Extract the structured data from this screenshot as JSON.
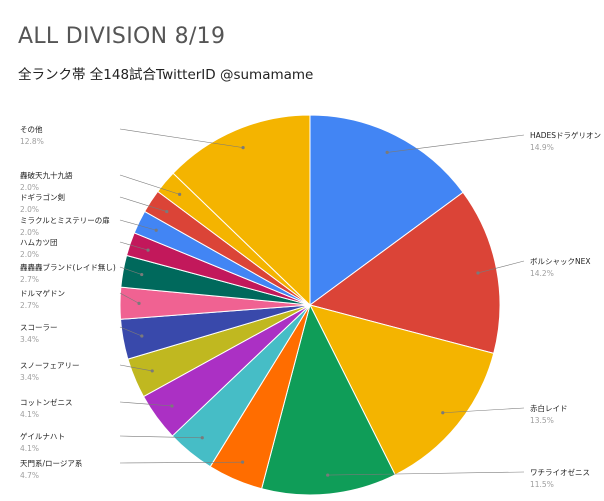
{
  "chart_data": {
    "type": "pie",
    "title": "ALL DIVISION 8/19",
    "subtitle": "全ランク帯 全148試合TwitterID @sumamame",
    "slices": [
      {
        "label": "HADESドラゲリオン",
        "value": 14.9,
        "value_label": "14.9%",
        "color": "#4285f4"
      },
      {
        "label": "ボルシャックNEX",
        "value": 14.2,
        "value_label": "14.2%",
        "color": "#db4437"
      },
      {
        "label": "赤白レイド",
        "value": 13.5,
        "value_label": "13.5%",
        "color": "#f4b400"
      },
      {
        "label": "ワチライオゼニス",
        "value": 11.5,
        "value_label": "11.5%",
        "color": "#0f9d58"
      },
      {
        "label": "天門系/ロージア系",
        "value": 4.7,
        "value_label": "4.7%",
        "color": "#ff6d00"
      },
      {
        "label": "ゲイルナハト",
        "value": 4.1,
        "value_label": "4.1%",
        "color": "#46bdc6"
      },
      {
        "label": "コットンゼニス",
        "value": 4.1,
        "value_label": "4.1%",
        "color": "#ab30c4"
      },
      {
        "label": "スノーフェアリー",
        "value": 3.4,
        "value_label": "3.4%",
        "color": "#c0b820"
      },
      {
        "label": "スコーラー",
        "value": 3.4,
        "value_label": "3.4%",
        "color": "#3949ab"
      },
      {
        "label": "ドルマゲドン",
        "value": 2.7,
        "value_label": "2.7%",
        "color": "#f06292"
      },
      {
        "label": "轟轟轟ブランド(レイド無し)",
        "value": 2.7,
        "value_label": "2.7%",
        "color": "#00695c"
      },
      {
        "label": "ハムカツ団",
        "value": 2.0,
        "value_label": "2.0%",
        "color": "#c2185b"
      },
      {
        "label": "ミラクルとミステリーの扉",
        "value": 2.0,
        "value_label": "2.0%",
        "color": "#4285f4"
      },
      {
        "label": "ドギラゴン剣",
        "value": 2.0,
        "value_label": "2.0%",
        "color": "#db4437"
      },
      {
        "label": "轟破天九十九語",
        "value": 2.0,
        "value_label": "2.0%",
        "color": "#f4b400"
      },
      {
        "label": "その他",
        "value": 12.8,
        "value_label": "12.8%",
        "color": "#f4b400"
      }
    ]
  }
}
